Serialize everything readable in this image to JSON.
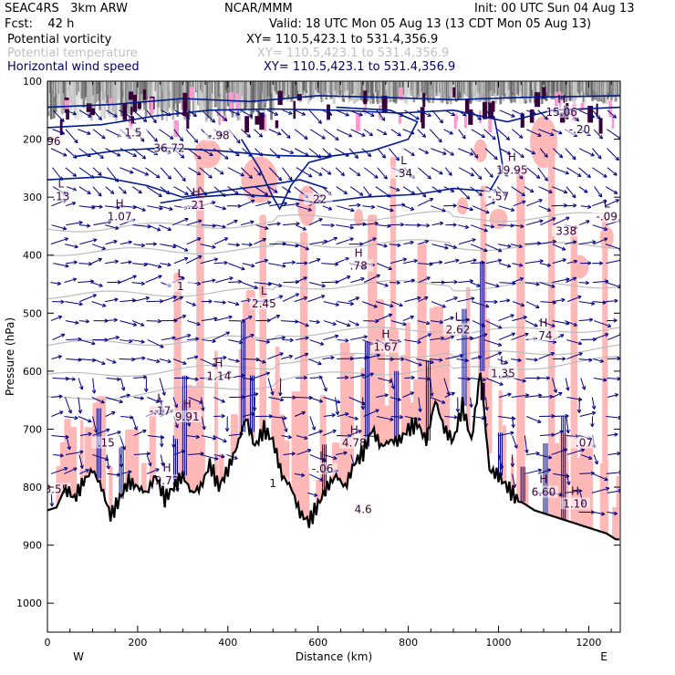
{
  "header": {
    "model": "SEAC4RS   3km ARW",
    "fcst": "Fcst:    42 h",
    "center": "NCAR/MMM",
    "init": "Init: 00 UTC Sun 04 Aug 13",
    "valid": "Valid: 18 UTC Mon 05 Aug 13 (13 CDT Mon 05 Aug 13)",
    "fields": [
      {
        "name": "Potential vorticity",
        "xy": "XY= 110.5,423.1 to 531.4,356.9",
        "color": "#000000"
      },
      {
        "name": "Potential temperature",
        "xy": "XY= 110.5,423.1 to 531.4,356.9",
        "color": "#c0c0c0"
      },
      {
        "name": "Horizontal wind speed",
        "xy": "XY= 110.5,423.1 to 531.4,356.9",
        "color": "#000060"
      }
    ]
  },
  "chart_data": {
    "type": "cross-section",
    "xlabel": "Distance (km)",
    "ylabel": "Pressure (hPa)",
    "xlim": [
      0,
      1270
    ],
    "ylim": [
      100,
      1050
    ],
    "y_scale": "linear, inverted",
    "x_ticks": [
      0,
      200,
      400,
      600,
      800,
      1000,
      1200
    ],
    "y_ticks": [
      100,
      200,
      300,
      400,
      500,
      600,
      700,
      800,
      900,
      1000
    ],
    "x_end_labels": {
      "left": "W",
      "right": "E"
    },
    "terrain_surface": {
      "distance_km": [
        0,
        20,
        40,
        60,
        80,
        100,
        120,
        140,
        160,
        180,
        200,
        220,
        240,
        260,
        280,
        300,
        320,
        340,
        360,
        380,
        400,
        420,
        440,
        460,
        480,
        500,
        520,
        540,
        560,
        580,
        600,
        620,
        640,
        660,
        680,
        700,
        720,
        740,
        760,
        780,
        800,
        820,
        840,
        860,
        880,
        900,
        920,
        940,
        960,
        980,
        1000,
        1020,
        1040,
        1060,
        1080,
        1100,
        1120,
        1140,
        1160,
        1180,
        1200,
        1220,
        1240,
        1260,
        1270
      ],
      "pressure_hpa": [
        840,
        835,
        800,
        820,
        790,
        770,
        800,
        850,
        820,
        790,
        800,
        810,
        780,
        820,
        800,
        780,
        810,
        800,
        760,
        800,
        770,
        730,
        680,
        730,
        700,
        720,
        780,
        800,
        845,
        860,
        830,
        800,
        780,
        800,
        760,
        740,
        700,
        730,
        720,
        720,
        700,
        690,
        720,
        650,
        700,
        720,
        660,
        720,
        600,
        770,
        780,
        800,
        820,
        830,
        840,
        845,
        850,
        855,
        860,
        865,
        870,
        875,
        880,
        890,
        890
      ]
    },
    "contour_labels": [
      {
        "field": "potential_vorticity",
        "type": "H",
        "value": "15.06",
        "x_km": 1140,
        "p_hpa": 160
      },
      {
        "field": "potential_vorticity",
        "type": "L",
        "value": "1.5",
        "x_km": 190,
        "p_hpa": 195
      },
      {
        "field": "potential_vorticity",
        "type": "",
        "value": ".96",
        "x_km": 10,
        "p_hpa": 210
      },
      {
        "field": "potential_vorticity",
        "type": "",
        "value": "36.72",
        "x_km": 270,
        "p_hpa": 222
      },
      {
        "field": "potential_vorticity",
        "type": "",
        "value": "-.98",
        "x_km": 380,
        "p_hpa": 200
      },
      {
        "field": "potential_vorticity",
        "type": "",
        "value": "-.20",
        "x_km": 1180,
        "p_hpa": 190
      },
      {
        "field": "potential_vorticity",
        "type": "L",
        "value": ".34",
        "x_km": 790,
        "p_hpa": 265
      },
      {
        "field": "potential_vorticity",
        "type": "H",
        "value": "19.95",
        "x_km": 1030,
        "p_hpa": 260
      },
      {
        "field": "potential_vorticity",
        "type": "L",
        "value": ".13",
        "x_km": 30,
        "p_hpa": 305
      },
      {
        "field": "potential_vorticity",
        "type": "H",
        "value": ".21",
        "x_km": 330,
        "p_hpa": 320
      },
      {
        "field": "potential_vorticity",
        "type": "",
        "value": ".22",
        "x_km": 600,
        "p_hpa": 310
      },
      {
        "field": "potential_vorticity",
        "type": "",
        "value": "-.57",
        "x_km": 1000,
        "p_hpa": 305
      },
      {
        "field": "potential_vorticity",
        "type": "H",
        "value": "1.07",
        "x_km": 160,
        "p_hpa": 340
      },
      {
        "field": "potential_vorticity",
        "type": "L",
        "value": "-.09",
        "x_km": 1240,
        "p_hpa": 340
      },
      {
        "field": "potential_vorticity",
        "type": "",
        "value": "338",
        "x_km": 1150,
        "p_hpa": 365
      },
      {
        "field": "potential_vorticity",
        "type": "H",
        "value": ".78",
        "x_km": 690,
        "p_hpa": 425
      },
      {
        "field": "potential_vorticity",
        "type": "L",
        "value": "1",
        "x_km": 295,
        "p_hpa": 460
      },
      {
        "field": "potential_vorticity",
        "type": "L",
        "value": "2.45",
        "x_km": 480,
        "p_hpa": 490
      },
      {
        "field": "potential_vorticity",
        "type": "L",
        "value": "2.62",
        "x_km": 910,
        "p_hpa": 535
      },
      {
        "field": "potential_vorticity",
        "type": "H",
        "value": ".74",
        "x_km": 1100,
        "p_hpa": 545
      },
      {
        "field": "potential_vorticity",
        "type": "H",
        "value": "1.67",
        "x_km": 750,
        "p_hpa": 565
      },
      {
        "field": "potential_vorticity",
        "type": "L",
        "value": "1.35",
        "x_km": 1010,
        "p_hpa": 610
      },
      {
        "field": "potential_vorticity",
        "type": "H",
        "value": "1.14",
        "x_km": 380,
        "p_hpa": 615
      },
      {
        "field": "potential_vorticity",
        "type": "L",
        "value": "-.17",
        "x_km": 250,
        "p_hpa": 675
      },
      {
        "field": "potential_vorticity",
        "type": "H",
        "value": "9.91",
        "x_km": 310,
        "p_hpa": 685
      },
      {
        "field": "potential_vorticity",
        "type": "",
        "value": ".15",
        "x_km": 130,
        "p_hpa": 730
      },
      {
        "field": "potential_vorticity",
        "type": "H",
        "value": "4.78",
        "x_km": 680,
        "p_hpa": 730
      },
      {
        "field": "potential_vorticity",
        "type": "",
        "value": ".07",
        "x_km": 1190,
        "p_hpa": 730
      },
      {
        "field": "potential_vorticity",
        "type": "L",
        "value": "-.06",
        "x_km": 610,
        "p_hpa": 775
      },
      {
        "field": "potential_vorticity",
        "type": "H",
        "value": "9.72",
        "x_km": 265,
        "p_hpa": 795
      },
      {
        "field": "potential_vorticity",
        "type": "",
        "value": "8.55",
        "x_km": 20,
        "p_hpa": 810
      },
      {
        "field": "potential_vorticity",
        "type": "H",
        "value": "6.60",
        "x_km": 1100,
        "p_hpa": 815
      },
      {
        "field": "potential_vorticity",
        "type": "H",
        "value": "1.10",
        "x_km": 1170,
        "p_hpa": 835
      },
      {
        "field": "potential_vorticity",
        "type": "",
        "value": "1",
        "x_km": 500,
        "p_hpa": 800
      },
      {
        "field": "potential_vorticity",
        "type": "",
        "value": "4.6",
        "x_km": 700,
        "p_hpa": 845
      }
    ]
  },
  "colors": {
    "pv_shading": "#ffb8b8",
    "theta_contour": "#bcbcbc",
    "wind_arrow": "#000080",
    "wind_speed_contour": "#001a90",
    "terrain": "#000000",
    "label_text": "#3a003a"
  }
}
